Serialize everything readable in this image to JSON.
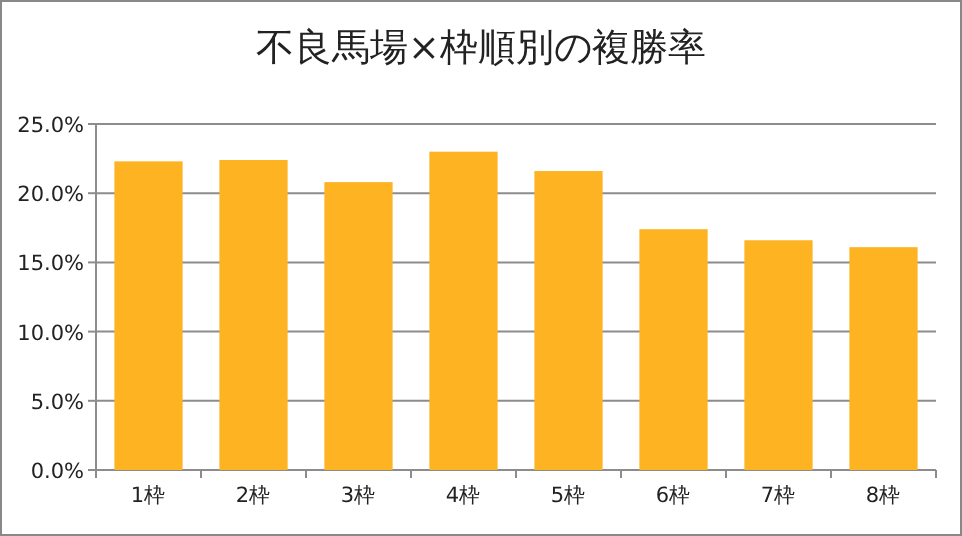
{
  "chart_data": {
    "type": "bar",
    "title": "不良馬場×枠順別の複勝率",
    "categories": [
      "1枠",
      "2枠",
      "3枠",
      "4枠",
      "5枠",
      "6枠",
      "7枠",
      "8枠"
    ],
    "values": [
      22.3,
      22.4,
      20.8,
      23.0,
      21.6,
      17.4,
      16.6,
      16.1
    ],
    "color": "#fdb322",
    "ylim": [
      0,
      25
    ],
    "yticks": [
      {
        "value": 0,
        "label": "0.0%"
      },
      {
        "value": 5,
        "label": "5.0%"
      },
      {
        "value": 10,
        "label": "10.0%"
      },
      {
        "value": 15,
        "label": "15.0%"
      },
      {
        "value": 20,
        "label": "20.0%"
      },
      {
        "value": 25,
        "label": "25.0%"
      }
    ],
    "grid": "y"
  }
}
